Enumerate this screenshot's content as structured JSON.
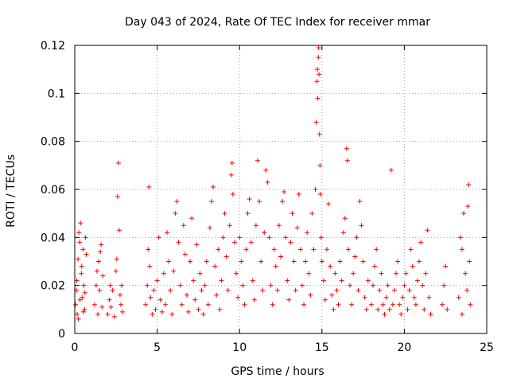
{
  "chart_data": {
    "type": "scatter",
    "title": "Day 043 of 2024, Rate Of TEC Index for receiver mmar",
    "xlabel": "GPS time / hours",
    "ylabel": "ROTI / TECUs",
    "xlim": [
      0,
      25
    ],
    "ylim": [
      0,
      0.12
    ],
    "xticks": [
      0,
      5,
      10,
      15,
      20,
      25
    ],
    "xtick_labels": [
      "0",
      "5",
      "10",
      "15",
      "20",
      "25"
    ],
    "yticks": [
      0,
      0.02,
      0.04,
      0.06,
      0.08,
      0.1,
      0.12
    ],
    "ytick_labels": [
      "0",
      "0.02",
      "0.04",
      "0.06",
      "0.08",
      "0.1",
      "0.12"
    ],
    "grid": true,
    "marker": "plus",
    "series_color": "#ff0000",
    "series": [
      {
        "points": [
          [
            0.05,
            0.012
          ],
          [
            0.1,
            0.018
          ],
          [
            0.15,
            0.008
          ],
          [
            0.2,
            0.031
          ],
          [
            0.25,
            0.042
          ],
          [
            0.3,
            0.038
          ],
          [
            0.35,
            0.046
          ],
          [
            0.4,
            0.025
          ],
          [
            0.45,
            0.015
          ],
          [
            0.5,
            0.035
          ],
          [
            0.55,
            0.02
          ],
          [
            0.6,
            0.01
          ],
          [
            0.65,
            0.04
          ],
          [
            0.7,
            0.033
          ],
          [
            0.12,
            0.022
          ],
          [
            0.22,
            0.006
          ],
          [
            0.32,
            0.014
          ],
          [
            0.42,
            0.028
          ],
          [
            0.52,
            0.009
          ],
          [
            0.62,
            0.017
          ],
          [
            1.2,
            0.012
          ],
          [
            1.3,
            0.02
          ],
          [
            1.35,
            0.026
          ],
          [
            1.4,
            0.008
          ],
          [
            1.45,
            0.03
          ],
          [
            1.5,
            0.018
          ],
          [
            1.55,
            0.034
          ],
          [
            1.6,
            0.037
          ],
          [
            1.65,
            0.011
          ],
          [
            1.7,
            0.024
          ],
          [
            2.0,
            0.008
          ],
          [
            2.1,
            0.014
          ],
          [
            2.15,
            0.02
          ],
          [
            2.2,
            0.011
          ],
          [
            2.3,
            0.018
          ],
          [
            2.4,
            0.007
          ],
          [
            2.5,
            0.026
          ],
          [
            2.55,
            0.031
          ],
          [
            2.6,
            0.057
          ],
          [
            2.65,
            0.071
          ],
          [
            2.7,
            0.043
          ],
          [
            2.75,
            0.016
          ],
          [
            2.8,
            0.012
          ],
          [
            2.85,
            0.02
          ],
          [
            2.9,
            0.009
          ],
          [
            4.3,
            0.012
          ],
          [
            4.4,
            0.02
          ],
          [
            4.45,
            0.035
          ],
          [
            4.5,
            0.061
          ],
          [
            4.55,
            0.028
          ],
          [
            4.6,
            0.015
          ],
          [
            4.7,
            0.008
          ],
          [
            4.8,
            0.018
          ],
          [
            4.9,
            0.01
          ],
          [
            5.0,
            0.022
          ],
          [
            5.1,
            0.04
          ],
          [
            5.2,
            0.014
          ],
          [
            5.3,
            0.009
          ],
          [
            5.4,
            0.025
          ],
          [
            5.5,
            0.012
          ],
          [
            5.6,
            0.042
          ],
          [
            5.7,
            0.03
          ],
          [
            5.8,
            0.018
          ],
          [
            5.9,
            0.008
          ],
          [
            6.0,
            0.026
          ],
          [
            6.1,
            0.05
          ],
          [
            6.2,
            0.055
          ],
          [
            6.3,
            0.038
          ],
          [
            6.4,
            0.02
          ],
          [
            6.5,
            0.012
          ],
          [
            6.6,
            0.045
          ],
          [
            6.7,
            0.033
          ],
          [
            6.8,
            0.016
          ],
          [
            6.9,
            0.009
          ],
          [
            7.0,
            0.03
          ],
          [
            7.1,
            0.048
          ],
          [
            7.2,
            0.022
          ],
          [
            7.3,
            0.014
          ],
          [
            7.4,
            0.037
          ],
          [
            7.5,
            0.01
          ],
          [
            7.6,
            0.025
          ],
          [
            7.7,
            0.018
          ],
          [
            7.8,
            0.008
          ],
          [
            7.9,
            0.02
          ],
          [
            8.0,
            0.03
          ],
          [
            8.1,
            0.012
          ],
          [
            8.2,
            0.044
          ],
          [
            8.3,
            0.055
          ],
          [
            8.4,
            0.061
          ],
          [
            8.5,
            0.028
          ],
          [
            8.6,
            0.016
          ],
          [
            8.7,
            0.035
          ],
          [
            8.8,
            0.01
          ],
          [
            8.9,
            0.022
          ],
          [
            9.0,
            0.04
          ],
          [
            9.1,
            0.05
          ],
          [
            9.2,
            0.032
          ],
          [
            9.3,
            0.018
          ],
          [
            9.4,
            0.045
          ],
          [
            9.5,
            0.066
          ],
          [
            9.55,
            0.071
          ],
          [
            9.6,
            0.058
          ],
          [
            9.7,
            0.038
          ],
          [
            9.8,
            0.025
          ],
          [
            9.9,
            0.015
          ],
          [
            10.0,
            0.04
          ],
          [
            10.1,
            0.03
          ],
          [
            10.2,
            0.02
          ],
          [
            10.3,
            0.012
          ],
          [
            10.4,
            0.035
          ],
          [
            10.5,
            0.05
          ],
          [
            10.6,
            0.056
          ],
          [
            10.7,
            0.038
          ],
          [
            10.8,
            0.022
          ],
          [
            10.9,
            0.014
          ],
          [
            11.0,
            0.045
          ],
          [
            11.1,
            0.072
          ],
          [
            11.2,
            0.055
          ],
          [
            11.3,
            0.03
          ],
          [
            11.4,
            0.018
          ],
          [
            11.5,
            0.042
          ],
          [
            11.6,
            0.068
          ],
          [
            11.7,
            0.063
          ],
          [
            11.8,
            0.04
          ],
          [
            11.9,
            0.02
          ],
          [
            12.0,
            0.012
          ],
          [
            12.1,
            0.035
          ],
          [
            12.2,
            0.028
          ],
          [
            12.3,
            0.018
          ],
          [
            12.4,
            0.045
          ],
          [
            12.5,
            0.032
          ],
          [
            12.6,
            0.055
          ],
          [
            12.7,
            0.059
          ],
          [
            12.8,
            0.04
          ],
          [
            12.9,
            0.022
          ],
          [
            13.0,
            0.014
          ],
          [
            13.1,
            0.038
          ],
          [
            13.2,
            0.05
          ],
          [
            13.3,
            0.03
          ],
          [
            13.4,
            0.018
          ],
          [
            13.5,
            0.044
          ],
          [
            13.6,
            0.058
          ],
          [
            13.7,
            0.035
          ],
          [
            13.8,
            0.02
          ],
          [
            13.9,
            0.012
          ],
          [
            14.0,
            0.03
          ],
          [
            14.1,
            0.042
          ],
          [
            14.2,
            0.025
          ],
          [
            14.3,
            0.016
          ],
          [
            14.4,
            0.05
          ],
          [
            14.5,
            0.035
          ],
          [
            14.6,
            0.06
          ],
          [
            14.65,
            0.088
          ],
          [
            14.7,
            0.105
          ],
          [
            14.72,
            0.11
          ],
          [
            14.75,
            0.098
          ],
          [
            14.78,
            0.115
          ],
          [
            14.8,
            0.119
          ],
          [
            14.82,
            0.108
          ],
          [
            14.85,
            0.083
          ],
          [
            14.88,
            0.07
          ],
          [
            14.9,
            0.058
          ],
          [
            14.95,
            0.04
          ],
          [
            15.0,
            0.03
          ],
          [
            15.1,
            0.022
          ],
          [
            15.2,
            0.014
          ],
          [
            15.3,
            0.035
          ],
          [
            15.4,
            0.054
          ],
          [
            15.5,
            0.028
          ],
          [
            15.6,
            0.016
          ],
          [
            15.7,
            0.01
          ],
          [
            15.8,
            0.025
          ],
          [
            15.9,
            0.018
          ],
          [
            16.0,
            0.012
          ],
          [
            16.1,
            0.03
          ],
          [
            16.2,
            0.022
          ],
          [
            16.3,
            0.042
          ],
          [
            16.4,
            0.048
          ],
          [
            16.5,
            0.077
          ],
          [
            16.55,
            0.072
          ],
          [
            16.6,
            0.035
          ],
          [
            16.7,
            0.02
          ],
          [
            16.8,
            0.012
          ],
          [
            16.9,
            0.025
          ],
          [
            17.0,
            0.032
          ],
          [
            17.1,
            0.04
          ],
          [
            17.2,
            0.018
          ],
          [
            17.3,
            0.055
          ],
          [
            17.4,
            0.045
          ],
          [
            17.5,
            0.03
          ],
          [
            17.6,
            0.015
          ],
          [
            17.7,
            0.01
          ],
          [
            17.8,
            0.022
          ],
          [
            18.0,
            0.012
          ],
          [
            18.1,
            0.02
          ],
          [
            18.2,
            0.028
          ],
          [
            18.3,
            0.035
          ],
          [
            18.4,
            0.01
          ],
          [
            18.5,
            0.018
          ],
          [
            18.6,
            0.025
          ],
          [
            18.7,
            0.012
          ],
          [
            18.8,
            0.008
          ],
          [
            18.9,
            0.015
          ],
          [
            19.0,
            0.02
          ],
          [
            19.1,
            0.01
          ],
          [
            19.2,
            0.068
          ],
          [
            19.3,
            0.012
          ],
          [
            19.4,
            0.018
          ],
          [
            19.5,
            0.025
          ],
          [
            19.6,
            0.03
          ],
          [
            19.7,
            0.012
          ],
          [
            19.8,
            0.008
          ],
          [
            19.9,
            0.015
          ],
          [
            20.0,
            0.02
          ],
          [
            20.1,
            0.025
          ],
          [
            20.2,
            0.01
          ],
          [
            20.3,
            0.018
          ],
          [
            20.4,
            0.035
          ],
          [
            20.5,
            0.028
          ],
          [
            20.6,
            0.015
          ],
          [
            20.7,
            0.012
          ],
          [
            20.8,
            0.022
          ],
          [
            20.9,
            0.03
          ],
          [
            21.0,
            0.038
          ],
          [
            21.1,
            0.02
          ],
          [
            21.2,
            0.01
          ],
          [
            21.3,
            0.025
          ],
          [
            21.4,
            0.043
          ],
          [
            21.5,
            0.015
          ],
          [
            21.6,
            0.008
          ],
          [
            22.3,
            0.012
          ],
          [
            22.4,
            0.02
          ],
          [
            22.5,
            0.028
          ],
          [
            22.6,
            0.01
          ],
          [
            23.3,
            0.015
          ],
          [
            23.4,
            0.04
          ],
          [
            23.5,
            0.035
          ],
          [
            23.6,
            0.05
          ],
          [
            23.7,
            0.025
          ],
          [
            23.8,
            0.018
          ],
          [
            23.85,
            0.053
          ],
          [
            23.9,
            0.062
          ],
          [
            23.95,
            0.03
          ],
          [
            24.0,
            0.012
          ],
          [
            23.5,
            0.008
          ]
        ]
      }
    ]
  }
}
